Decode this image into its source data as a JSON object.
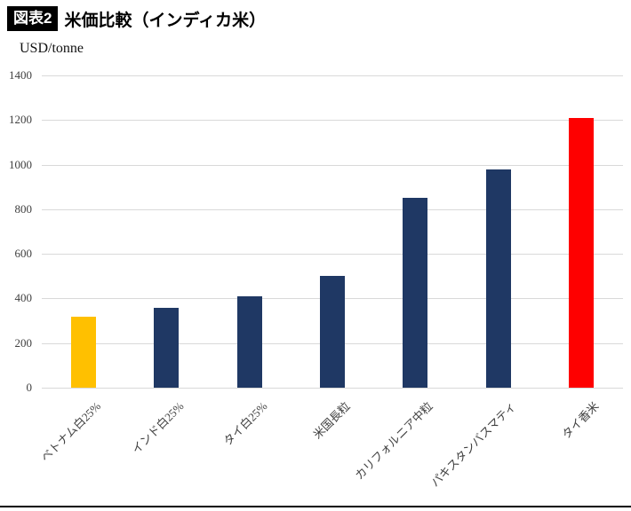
{
  "header": {
    "tag": "図表2",
    "title": "米価比較（インディカ米）"
  },
  "chart_data": {
    "type": "bar",
    "title": "米価比較（インディカ米）",
    "unit_label": "USD/tonne",
    "categories": [
      "ベトナム白25%",
      "インド白25%",
      "タイ白25%",
      "米国長粒",
      "カリフォルニア中粒",
      "パキスタンバスマティ",
      "タイ香米"
    ],
    "values": [
      320,
      360,
      410,
      500,
      850,
      980,
      1210
    ],
    "bar_colors": [
      "#FFC000",
      "#1F3864",
      "#1F3864",
      "#1F3864",
      "#1F3864",
      "#1F3864",
      "#FE0000"
    ],
    "xlabel": "",
    "ylabel": "USD/tonne",
    "ylim": [
      0,
      1400
    ],
    "yticks": [
      0,
      200,
      400,
      600,
      800,
      1000,
      1200,
      1400
    ],
    "grid": true,
    "legend": "none"
  },
  "colors": {
    "highlight_yellow": "#FFC000",
    "base_navy": "#1F3864",
    "highlight_red": "#FE0000",
    "gridline": "#D9D9D9",
    "tick_text": "#404040"
  }
}
